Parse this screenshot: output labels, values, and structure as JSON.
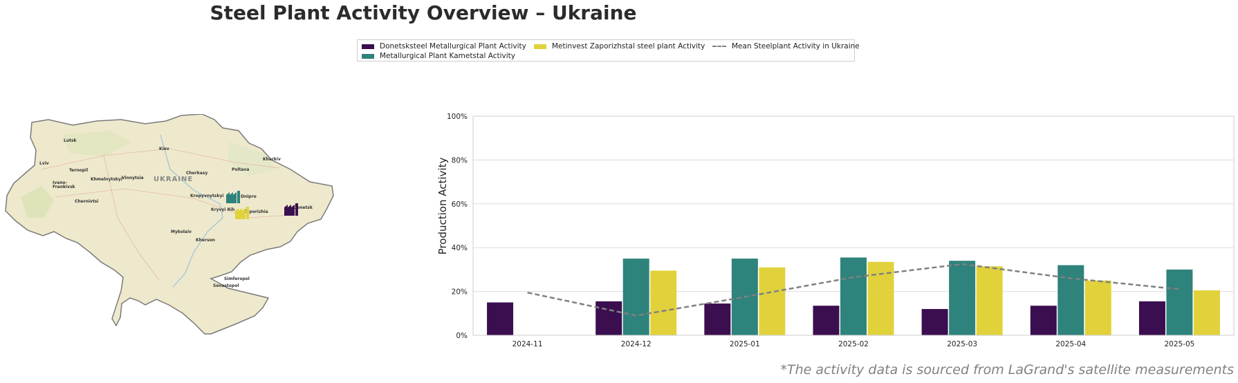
{
  "page": {
    "title": "Steel Plant Activity Overview – Ukraine",
    "footnote": "*The activity data is sourced from LaGrand's satellite measurements"
  },
  "legend": {
    "items": [
      {
        "label": "Donetsksteel Metallurgical Plant Activity",
        "color": "#3b0f4f",
        "kind": "bar"
      },
      {
        "label": "Metallurgical Plant Kametstal Activity",
        "color": "#2e837c",
        "kind": "bar"
      },
      {
        "label": "Metinvest Zaporizhstal steel plant Activity",
        "color": "#e1d23c",
        "kind": "bar"
      },
      {
        "label": "Mean Steelplant Activity in Ukraine",
        "color": "#808080",
        "kind": "dashed-line"
      }
    ]
  },
  "map": {
    "country_label": "UKRAINE",
    "cities": [
      "Lutsk",
      "Kiev",
      "Kharkiv",
      "Lviv",
      "Ternopil",
      "Khmelnytskyi",
      "Vinnytsia",
      "Cherkasy",
      "Poltava",
      "Ivano-",
      "Frankivsk",
      "Chernivtsi",
      "Kropyvnytskyi",
      "Dnipro",
      "Kryvyi Rih",
      "Zaporizhia",
      "Donetsk",
      "Mykolaiv",
      "Kherson",
      "Simferopol",
      "Sevastopol"
    ],
    "plant_icon_colors": [
      "#2e837c",
      "#e1d23c",
      "#3b0f4f"
    ]
  },
  "chart_data": {
    "type": "bar",
    "categories": [
      "2024-11",
      "2024-12",
      "2025-01",
      "2025-02",
      "2025-03",
      "2025-04",
      "2025-05"
    ],
    "series": [
      {
        "name": "Donetsksteel Metallurgical Plant Activity",
        "color": "#3b0f4f",
        "values": [
          15,
          15.5,
          14.5,
          13.5,
          12,
          13.5,
          15.5
        ]
      },
      {
        "name": "Metallurgical Plant Kametstal Activity",
        "color": "#2e837c",
        "values": [
          null,
          35,
          35,
          35.5,
          34,
          32,
          30
        ]
      },
      {
        "name": "Metinvest Zaporizhstal steel plant Activity",
        "color": "#e1d23c",
        "values": [
          null,
          29.5,
          31,
          33.5,
          31.5,
          25,
          20.5
        ]
      }
    ],
    "line": {
      "name": "Mean Steelplant Activity in Ukraine",
      "color": "#808080",
      "style": "dashed",
      "values": [
        19.5,
        9,
        17.5,
        26.5,
        32.5,
        26,
        21
      ]
    },
    "ylabel": "Production Activity",
    "xlabel": "",
    "ylim": [
      0,
      100
    ],
    "yticks": [
      "0%",
      "20%",
      "40%",
      "60%",
      "80%",
      "100%"
    ],
    "grid": "horizontal"
  }
}
